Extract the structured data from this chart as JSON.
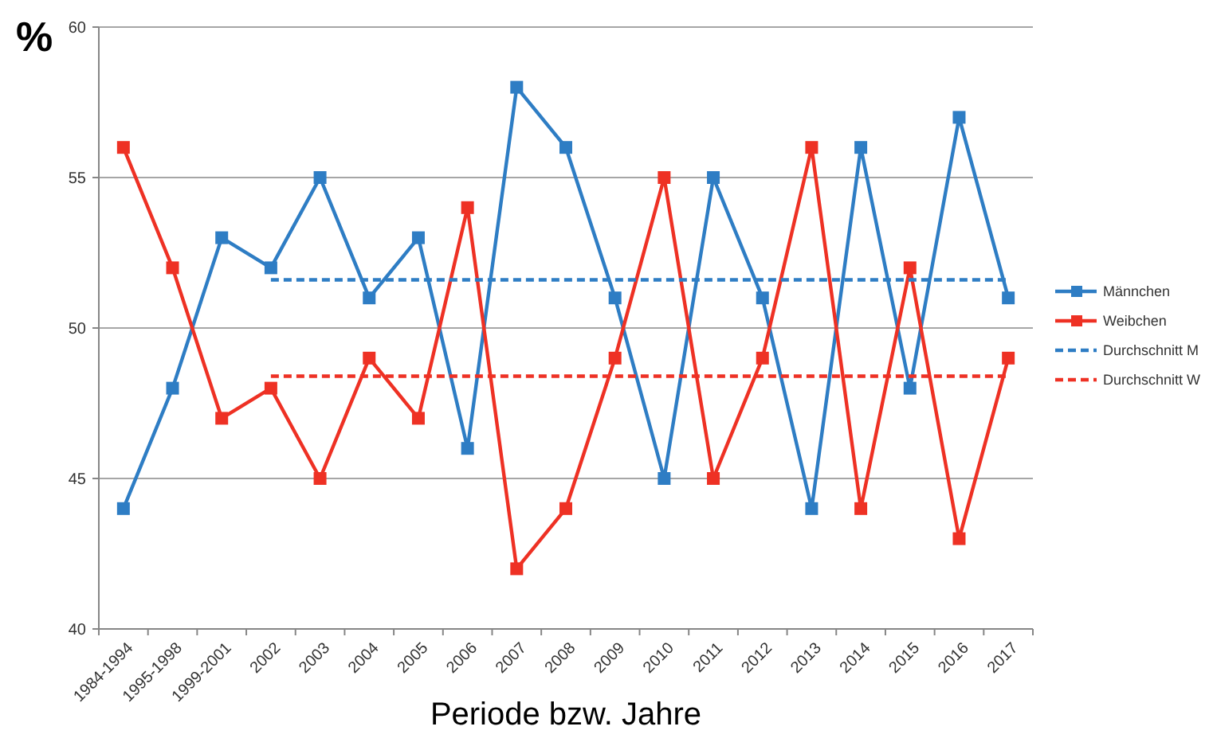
{
  "chart_data": {
    "type": "line",
    "ylabel": "%",
    "xlabel": "Periode bzw. Jahre",
    "categories": [
      "1984-1994",
      "1995-1998",
      "1999-2001",
      "2002",
      "2003",
      "2004",
      "2005",
      "2006",
      "2007",
      "2008",
      "2009",
      "2010",
      "2011",
      "2012",
      "2013",
      "2014",
      "2015",
      "2016",
      "2017"
    ],
    "series": [
      {
        "name": "Männchen",
        "color": "#2e7dc4",
        "marker": "square",
        "line_style": "solid",
        "values": [
          44,
          48,
          53,
          52,
          55,
          51,
          53,
          46,
          58,
          56,
          51,
          45,
          55,
          51,
          44,
          56,
          48,
          57,
          51
        ]
      },
      {
        "name": "Weibchen",
        "color": "#ee3124",
        "marker": "square",
        "line_style": "solid",
        "values": [
          56,
          52,
          47,
          48,
          45,
          49,
          47,
          54,
          42,
          44,
          49,
          55,
          45,
          49,
          56,
          44,
          52,
          43,
          49
        ]
      },
      {
        "name": "Durchschnitt M",
        "color": "#2e7dc4",
        "marker": "none",
        "line_style": "dashed",
        "values": [
          null,
          null,
          null,
          51.6,
          51.6,
          51.6,
          51.6,
          51.6,
          51.6,
          51.6,
          51.6,
          51.6,
          51.6,
          51.6,
          51.6,
          51.6,
          51.6,
          51.6,
          51.6
        ]
      },
      {
        "name": "Durchschnitt W",
        "color": "#ee3124",
        "marker": "none",
        "line_style": "dashed",
        "values": [
          null,
          null,
          null,
          48.4,
          48.4,
          48.4,
          48.4,
          48.4,
          48.4,
          48.4,
          48.4,
          48.4,
          48.4,
          48.4,
          48.4,
          48.4,
          48.4,
          48.4,
          48.4
        ]
      }
    ],
    "ylim": [
      40,
      60
    ],
    "yticks": [
      40,
      45,
      50,
      55,
      60
    ],
    "grid": "y",
    "legend": "right"
  }
}
